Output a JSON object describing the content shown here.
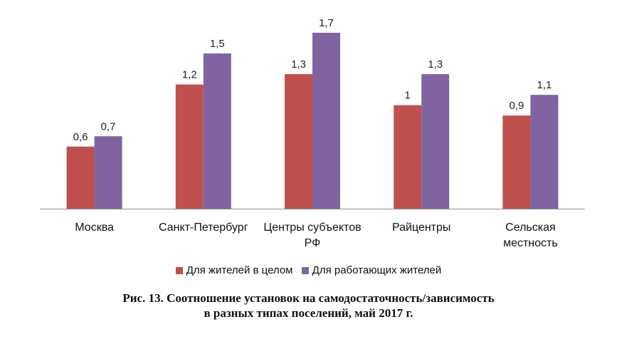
{
  "chart_data": {
    "type": "bar",
    "categories": [
      [
        "Москва"
      ],
      [
        "Санкт-Петербург"
      ],
      [
        "Центры субъектов",
        "РФ"
      ],
      [
        "Райцентры"
      ],
      [
        "Сельская",
        "местность"
      ]
    ],
    "series": [
      {
        "name": "Для жителей в целом",
        "color": "#C0504D",
        "values": [
          0.6,
          1.2,
          1.3,
          1,
          0.9
        ],
        "labels": [
          "0,6",
          "1,2",
          "1,3",
          "1",
          "0,9"
        ]
      },
      {
        "name": "Для работающих жителей",
        "color": "#8064A2",
        "values": [
          0.7,
          1.5,
          1.7,
          1.3,
          1.1
        ],
        "labels": [
          "0,7",
          "1,5",
          "1,7",
          "1,3",
          "1,1"
        ]
      }
    ],
    "ylim": [
      0,
      1.7
    ],
    "grid": false,
    "legend_position": "bottom"
  },
  "caption": {
    "line1": "Рис. 13. Соотношение установок на самодостаточность/зависимость",
    "line2": "в разных типах поселений, май 2017  г."
  }
}
